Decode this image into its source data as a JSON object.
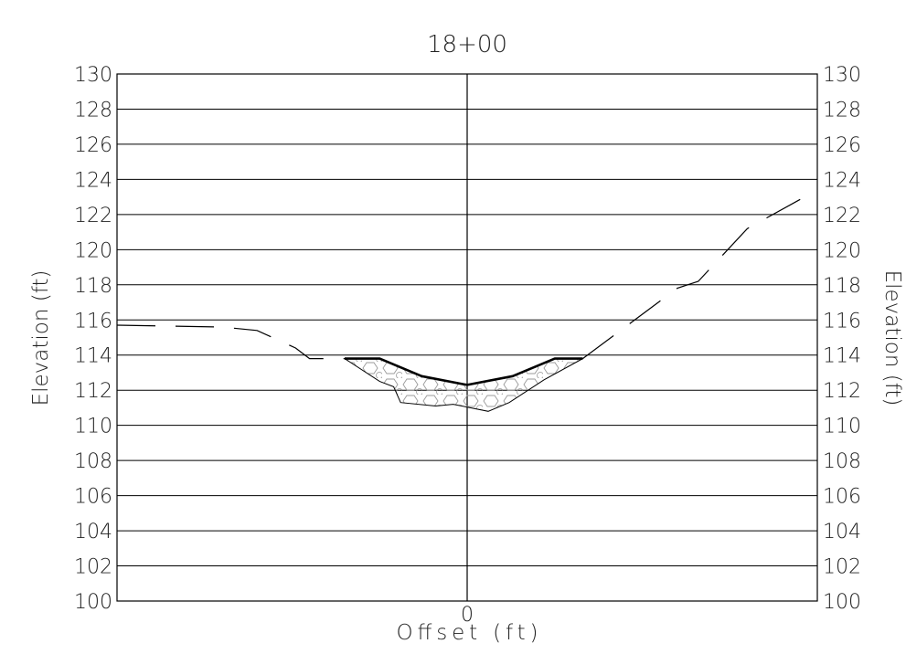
{
  "chart_data": {
    "type": "line",
    "title": "18+00",
    "xlabel": "Offset (ft)",
    "ylabel_left": "Elevation (ft)",
    "ylabel_right": "Elevation (ft)",
    "xlim": [
      -100,
      100
    ],
    "ylim": [
      100,
      130
    ],
    "y_ticks": [
      "100",
      "102",
      "104",
      "106",
      "108",
      "110",
      "112",
      "114",
      "116",
      "118",
      "120",
      "122",
      "124",
      "126",
      "128",
      "130"
    ],
    "x_ticks": [
      "0"
    ],
    "grid": "horizontal",
    "series": [
      {
        "style": "dashed",
        "x": [
          -100,
          -70,
          -60,
          -49,
          -45,
          -35
        ],
        "y": [
          115.7,
          115.6,
          115.4,
          114.4,
          113.8,
          113.8
        ]
      },
      {
        "style": "dashed",
        "x": [
          33,
          60,
          66,
          80,
          100
        ],
        "y": [
          113.8,
          117.8,
          118.2,
          121.2,
          123.4
        ]
      },
      {
        "style": "solid-bold",
        "x": [
          -35,
          -25,
          -13,
          0,
          13,
          25,
          33
        ],
        "y": [
          113.8,
          113.8,
          112.8,
          112.3,
          112.8,
          113.8,
          113.8
        ]
      },
      {
        "style": "solid-thin",
        "x": [
          -35,
          -25,
          -21,
          -19,
          -9,
          -4,
          6,
          12,
          22,
          33
        ],
        "y": [
          113.8,
          112.5,
          112.2,
          111.3,
          111.1,
          111.2,
          110.8,
          111.3,
          112.6,
          113.8
        ]
      }
    ],
    "riprap_area": {
      "x": [
        -35,
        -25,
        -13,
        0,
        13,
        25,
        33,
        22,
        12,
        6,
        -4,
        -9,
        -19,
        -21,
        -25
      ],
      "y": [
        113.8,
        113.8,
        112.8,
        112.3,
        112.8,
        113.8,
        113.8,
        112.6,
        111.3,
        110.8,
        111.2,
        111.1,
        111.3,
        112.2,
        112.5
      ]
    }
  }
}
